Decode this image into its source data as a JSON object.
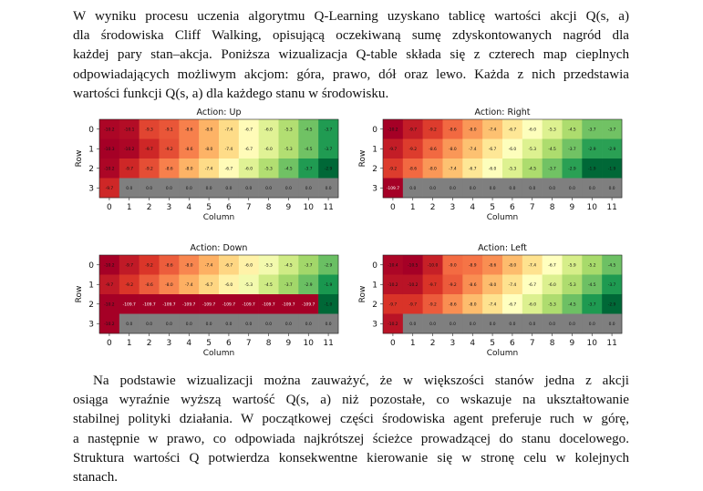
{
  "paragraph_1": {
    "lines": [
      "W wyniku procesu uczenia algorytmu Q-Learning uzyskano tablicę wartości akcji Q(s, a)",
      "dla środowiska Cliff Walking, opisującą oczekiwaną sumę zdyskontowanych nagród dla",
      "każdej pary stan–akcja. Poniższa wizualizacja Q-table składa się z czterech map cieplnych",
      "odpowiadających możliwym akcjom: góra, prawo, dół oraz lewo. Każda z nich przedstawia",
      "wartości funkcji Q(s, a) dla każdego stanu w środowisku."
    ]
  },
  "paragraph_2": {
    "lines": [
      "Na podstawie wizualizacji można zauważyć, że w większości stanów jedna z akcji",
      "osiąga wyraźnie wyższą wartość Q(s, a) niż pozostałe, co wskazuje na ukształtowanie",
      "stabilnej polityki działania. W początkowej części środowiska agent preferuje ruch w górę,",
      "a następnie w prawo, co odpowiada najkrótszej ścieżce prowadzącej do stanu docelowego.",
      "Struktura wartości Q potwierdza konsekwentne kierowanie się w stronę celu w kolejnych",
      "stanach."
    ]
  },
  "chart_data": [
    {
      "type": "heatmap",
      "title": "Action: Up",
      "xlabel": "Column",
      "ylabel": "Row",
      "x_ticks": [
        "0",
        "1",
        "2",
        "3",
        "4",
        "5",
        "6",
        "7",
        "8",
        "9",
        "10",
        "11"
      ],
      "y_ticks": [
        "0",
        "1",
        "2",
        "3"
      ],
      "values": [
        [
          "-10.2",
          "-10.1",
          "-9.3",
          "-9.1",
          "-8.6",
          "-8.0",
          "-7.4",
          "-6.7",
          "-6.0",
          "-5.3",
          "-4.5",
          "-3.7"
        ],
        [
          "-10.3",
          "-10.2",
          "-9.7",
          "-9.2",
          "-8.6",
          "-8.0",
          "-7.4",
          "-6.7",
          "-6.0",
          "-5.3",
          "-4.5",
          "-3.7"
        ],
        [
          "-10.2",
          "-9.7",
          "-9.2",
          "-8.6",
          "-8.0",
          "-7.4",
          "-6.7",
          "-6.0",
          "-5.3",
          "-4.5",
          "-3.7",
          "-2.9"
        ],
        [
          "-9.7",
          "0.0",
          "0.0",
          "0.0",
          "0.0",
          "0.0",
          "0.0",
          "0.0",
          "0.0",
          "0.0",
          "0.0",
          "0.0"
        ]
      ]
    },
    {
      "type": "heatmap",
      "title": "Action: Right",
      "xlabel": "Column",
      "ylabel": "Row",
      "x_ticks": [
        "0",
        "1",
        "2",
        "3",
        "4",
        "5",
        "6",
        "7",
        "8",
        "9",
        "10",
        "11"
      ],
      "y_ticks": [
        "0",
        "1",
        "2",
        "3"
      ],
      "values": [
        [
          "-10.2",
          "-9.7",
          "-9.2",
          "-8.6",
          "-8.0",
          "-7.4",
          "-6.7",
          "-6.0",
          "-5.3",
          "-4.5",
          "-3.7",
          "-3.7"
        ],
        [
          "-9.7",
          "-9.2",
          "-8.6",
          "-8.0",
          "-7.4",
          "-6.7",
          "-6.0",
          "-5.3",
          "-4.5",
          "-3.7",
          "-2.9",
          "-2.9"
        ],
        [
          "-9.2",
          "-8.6",
          "-8.0",
          "-7.4",
          "-6.7",
          "-6.0",
          "-5.3",
          "-4.5",
          "-3.7",
          "-2.9",
          "-1.9",
          "-1.9"
        ],
        [
          "-109.7",
          "0.0",
          "0.0",
          "0.0",
          "0.0",
          "0.0",
          "0.0",
          "0.0",
          "0.0",
          "0.0",
          "0.0",
          "0.0"
        ]
      ]
    },
    {
      "type": "heatmap",
      "title": "Action: Down",
      "xlabel": "Column",
      "ylabel": "Row",
      "x_ticks": [
        "0",
        "1",
        "2",
        "3",
        "4",
        "5",
        "6",
        "7",
        "8",
        "9",
        "10",
        "11"
      ],
      "y_ticks": [
        "0",
        "1",
        "2",
        "3"
      ],
      "values": [
        [
          "-10.2",
          "-9.7",
          "-9.2",
          "-8.6",
          "-8.0",
          "-7.4",
          "-6.7",
          "-6.0",
          "-5.3",
          "-4.5",
          "-3.7",
          "-2.9"
        ],
        [
          "-9.7",
          "-9.2",
          "-8.6",
          "-8.0",
          "-7.4",
          "-6.7",
          "-6.0",
          "-5.3",
          "-4.5",
          "-3.7",
          "-2.9",
          "-1.9"
        ],
        [
          "-10.2",
          "-109.7",
          "-109.7",
          "-109.7",
          "-109.7",
          "-109.7",
          "-109.7",
          "-109.7",
          "-109.7",
          "-109.7",
          "-109.7",
          "-1.0"
        ],
        [
          "-10.2",
          "0.0",
          "0.0",
          "0.0",
          "0.0",
          "0.0",
          "0.0",
          "0.0",
          "0.0",
          "0.0",
          "0.0",
          "0.0"
        ]
      ]
    },
    {
      "type": "heatmap",
      "title": "Action: Left",
      "xlabel": "Column",
      "ylabel": "Row",
      "x_ticks": [
        "0",
        "1",
        "2",
        "3",
        "4",
        "5",
        "6",
        "7",
        "8",
        "9",
        "10",
        "11"
      ],
      "y_ticks": [
        "0",
        "1",
        "2",
        "3"
      ],
      "values": [
        [
          "-10.4",
          "-10.5",
          "-10.0",
          "-9.0",
          "-8.9",
          "-8.6",
          "-8.0",
          "-7.4",
          "-6.7",
          "-5.9",
          "-5.2",
          "-4.5"
        ],
        [
          "-10.2",
          "-10.2",
          "-9.7",
          "-9.2",
          "-8.6",
          "-8.0",
          "-7.4",
          "-6.7",
          "-6.0",
          "-5.3",
          "-4.5",
          "-3.7"
        ],
        [
          "-9.7",
          "-9.7",
          "-9.2",
          "-8.6",
          "-8.0",
          "-7.4",
          "-6.7",
          "-6.0",
          "-5.3",
          "-4.5",
          "-3.7",
          "-2.9"
        ],
        [
          "-10.2",
          "0.0",
          "0.0",
          "0.0",
          "0.0",
          "0.0",
          "0.0",
          "0.0",
          "0.0",
          "0.0",
          "0.0",
          "0.0"
        ]
      ]
    }
  ],
  "colors": {
    "terminal_cell": "#7f7f7f"
  }
}
